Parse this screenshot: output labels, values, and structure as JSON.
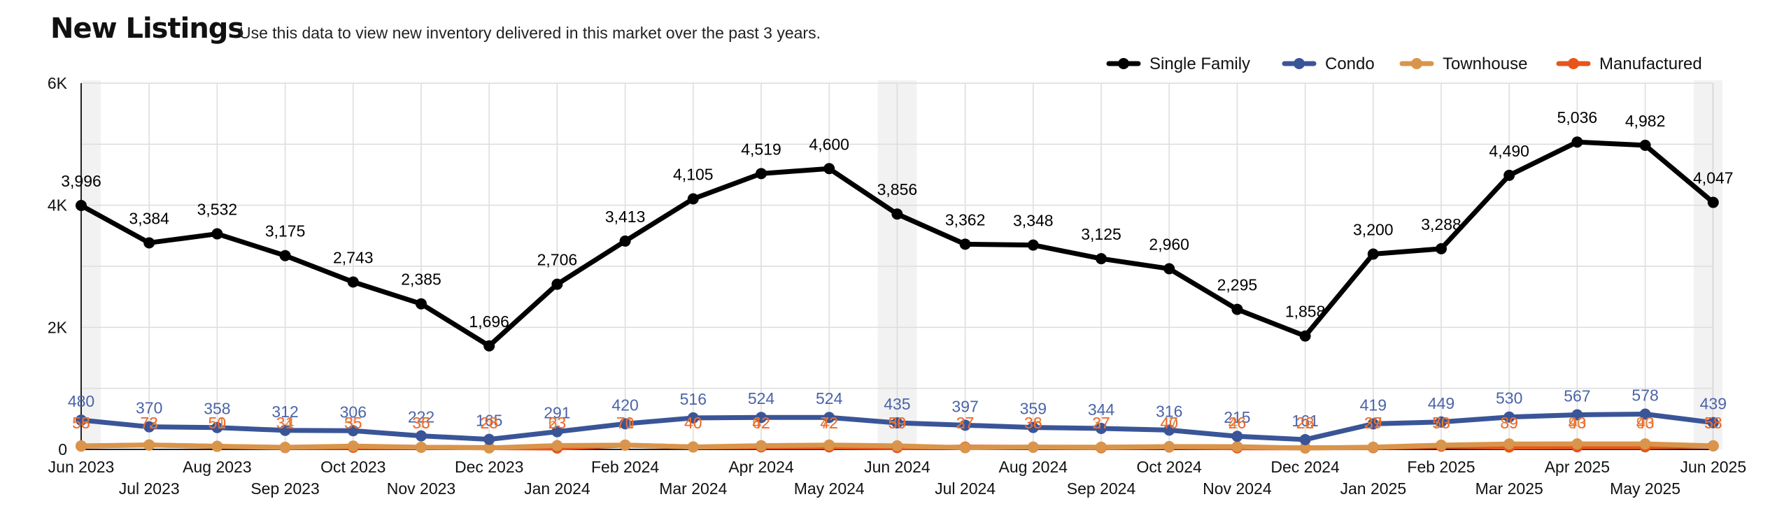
{
  "header": {
    "title": "New Listings",
    "subtitle": "Use this data to view new inventory delivered in this market over the past 3 years."
  },
  "chart_data": {
    "type": "line",
    "categories": [
      "Jun 2023",
      "Jul 2023",
      "Aug 2023",
      "Sep 2023",
      "Oct 2023",
      "Nov 2023",
      "Dec 2023",
      "Jan 2024",
      "Feb 2024",
      "Mar 2024",
      "Apr 2024",
      "May 2024",
      "Jun 2024",
      "Jul 2024",
      "Aug 2024",
      "Sep 2024",
      "Oct 2024",
      "Nov 2024",
      "Dec 2024",
      "Jan 2025",
      "Feb 2025",
      "Mar 2025",
      "Apr 2025",
      "May 2025",
      "Jun 2025"
    ],
    "ylim": [
      0,
      6000
    ],
    "yticks": [
      0,
      2000,
      4000,
      6000
    ],
    "ytick_labels": [
      "0",
      "2K",
      "4K",
      "6K"
    ],
    "grid": true,
    "legend_position": "top-right",
    "highlight_months": [
      "Jun 2023",
      "Jun 2024",
      "Jun 2025"
    ],
    "series": [
      {
        "name": "Single Family",
        "color": "#000000",
        "values": [
          3996,
          3384,
          3532,
          3175,
          2743,
          2385,
          1696,
          2706,
          3413,
          4105,
          4519,
          4600,
          3856,
          3362,
          3348,
          3125,
          2960,
          2295,
          1858,
          3200,
          3288,
          4490,
          5036,
          4982,
          4047
        ],
        "labels": [
          "3,996",
          "3,384",
          "3,532",
          "3,175",
          "2,743",
          "2,385",
          "1,696",
          "2,706",
          "3,413",
          "4,105",
          "4,519",
          "4,600",
          "3,856",
          "3,362",
          "3,348",
          "3,125",
          "2,960",
          "2,295",
          "1,858",
          "3,200",
          "3,288",
          "4,490",
          "5,036",
          "4,982",
          "4,047"
        ]
      },
      {
        "name": "Condo",
        "color": "#3a5597",
        "values": [
          480,
          370,
          358,
          312,
          306,
          222,
          165,
          291,
          420,
          516,
          524,
          524,
          435,
          397,
          359,
          344,
          316,
          215,
          161,
          419,
          449,
          530,
          567,
          578,
          439
        ],
        "labels": [
          "480",
          "370",
          "358",
          "312",
          "306",
          "222",
          "165",
          "291",
          "420",
          "516",
          "524",
          "524",
          "435",
          "397",
          "359",
          "344",
          "316",
          "215",
          "161",
          "419",
          "449",
          "530",
          "567",
          "578",
          "439"
        ]
      },
      {
        "name": "Townhouse",
        "color": "#d9954b",
        "values": [
          58,
          73,
          51,
          34,
          55,
          36,
          25,
          63,
          71,
          40,
          62,
          72,
          59,
          27,
          38,
          37,
          47,
          46,
          22,
          37,
          70,
          89,
          90,
          90,
          58
        ],
        "labels": [
          "58",
          "73",
          "51",
          "34",
          "55",
          "36",
          "25",
          "63",
          "71",
          "40",
          "62",
          "72",
          "59",
          "27",
          "38",
          "37",
          "47",
          "46",
          "22",
          "37",
          "70",
          "89",
          "90",
          "90",
          "58"
        ]
      },
      {
        "name": "Manufactured",
        "color": "#e8541a",
        "values": [
          55,
          72,
          50,
          31,
          35,
          35,
          28,
          23,
          70,
          40,
          42,
          42,
          30,
          37,
          36,
          27,
          40,
          26,
          26,
          29,
          53,
          39,
          43,
          43,
          58
        ],
        "labels": [
          "55",
          "72",
          "50",
          "31",
          "35",
          "35",
          "28",
          "23",
          "70",
          "40",
          "42",
          "42",
          "30",
          "37",
          "36",
          "27",
          "40",
          "26",
          "26",
          "29",
          "53",
          "39",
          "43",
          "43",
          "58"
        ]
      }
    ]
  }
}
